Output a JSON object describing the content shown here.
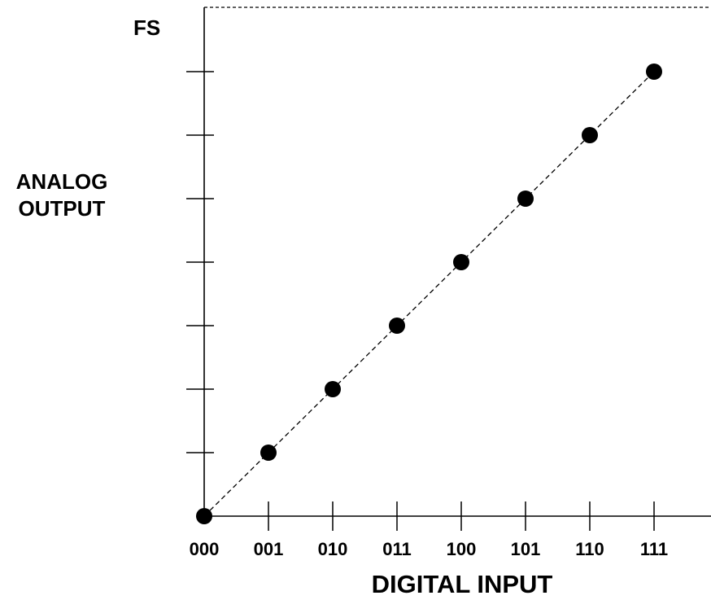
{
  "chart_data": {
    "type": "scatter",
    "title": "",
    "xlabel": "DIGITAL INPUT",
    "ylabel_lines": [
      "ANALOG",
      "OUTPUT"
    ],
    "y_top_label": "FS",
    "categories": [
      "000",
      "001",
      "010",
      "011",
      "100",
      "101",
      "110",
      "111"
    ],
    "values": [
      0,
      1,
      2,
      3,
      4,
      5,
      6,
      7
    ],
    "ylim": [
      0,
      8
    ],
    "y_ticks": [
      1,
      2,
      3,
      4,
      5,
      6,
      7
    ],
    "series": [
      {
        "values": [
          0,
          1,
          2,
          3,
          4,
          5,
          6,
          7
        ],
        "trend_line": "dashed"
      }
    ],
    "full_scale_line": "dashed",
    "grid": false,
    "legend": "none"
  },
  "colors": {
    "ink": "#000000",
    "background": "#ffffff"
  }
}
